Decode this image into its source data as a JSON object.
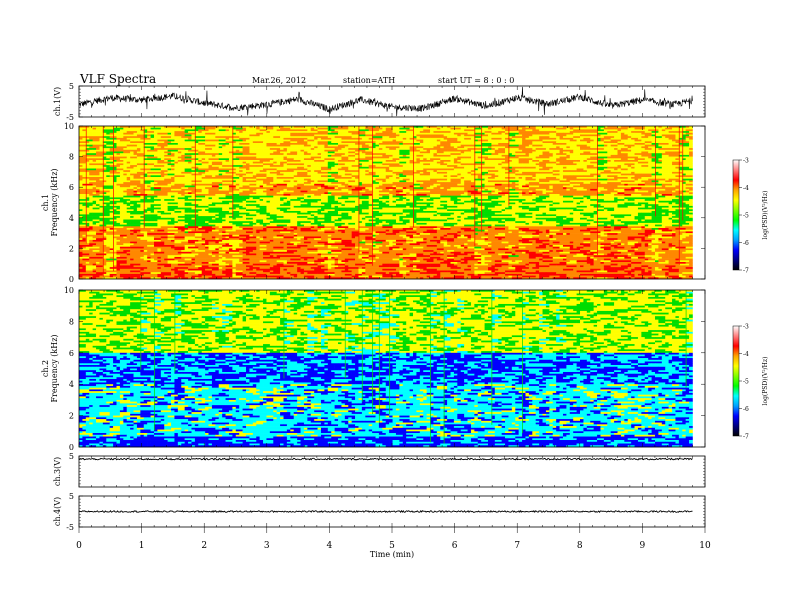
{
  "header": {
    "title": "VLF  Spectra",
    "date": "Mar.26, 2012",
    "station": "station=ATH",
    "start": "start  UT  =   8  : 0  : 0"
  },
  "colorbar": {
    "label": "log(PSD)(V²/Hz)",
    "ticks": [
      "-3",
      "-4",
      "-5",
      "-6",
      "-7"
    ],
    "colors": [
      "#ffffff",
      "#ff8080",
      "#ff0000",
      "#ffa500",
      "#ffff00",
      "#80ff00",
      "#00ff00",
      "#00ffff",
      "#00a0ff",
      "#0000ff",
      "#000080",
      "#000000"
    ]
  },
  "colors": {
    "ch1_spectrum": [
      "#ff0000",
      "#ff8800",
      "#ffff00",
      "#00dd00"
    ],
    "ch2_spectrum": [
      "#00dd00",
      "#ffff00",
      "#00ffff",
      "#0000ff"
    ]
  },
  "chart_data": [
    {
      "type": "line",
      "ylabel": "ch.1(V)",
      "ylim": [
        -5,
        5
      ],
      "yticks": [
        "5",
        "-5"
      ],
      "x": [
        0,
        0.5,
        1,
        1.5,
        2,
        2.5,
        3,
        3.5,
        4,
        4.5,
        5,
        5.5,
        6,
        6.5,
        7,
        7.5,
        8,
        8.5,
        9,
        9.5,
        9.8
      ],
      "y": [
        -1,
        1.2,
        0.5,
        1.8,
        -0.5,
        -2,
        -1,
        0.8,
        -2.5,
        0.6,
        -1.8,
        -2.2,
        1,
        -1.5,
        1.2,
        -0.8,
        1.5,
        -1.5,
        0.5,
        -1,
        0.3
      ]
    },
    {
      "type": "heatmap",
      "ylabel": "ch.1\nFrequency  (kHz)",
      "yticks": [
        "0",
        "2",
        "4",
        "6",
        "8",
        "10"
      ],
      "ylim": [
        0,
        10
      ],
      "xlim": [
        0,
        9.8
      ]
    },
    {
      "type": "heatmap",
      "ylabel": "ch.2\nFrequency  (kHz)",
      "yticks": [
        "0",
        "2",
        "4",
        "6",
        "8",
        "10"
      ],
      "ylim": [
        0,
        10
      ],
      "xlim": [
        0,
        9.8
      ]
    },
    {
      "type": "line",
      "ylabel": "ch.3(V)",
      "ylim": [
        -5,
        5
      ],
      "yticks": [
        "5"
      ],
      "x": [
        0,
        9.8
      ],
      "y": [
        4,
        4
      ]
    },
    {
      "type": "line",
      "ylabel": "ch.4(V)",
      "ylim": [
        -5,
        5
      ],
      "yticks": [
        "5",
        "-5"
      ],
      "x": [
        0,
        9.8
      ],
      "y": [
        0,
        0
      ]
    }
  ],
  "xaxis": {
    "label": "Time  (min)",
    "ticks": [
      "0",
      "1",
      "2",
      "3",
      "4",
      "5",
      "6",
      "7",
      "8",
      "9",
      "10"
    ],
    "xlim": [
      0,
      10
    ]
  }
}
